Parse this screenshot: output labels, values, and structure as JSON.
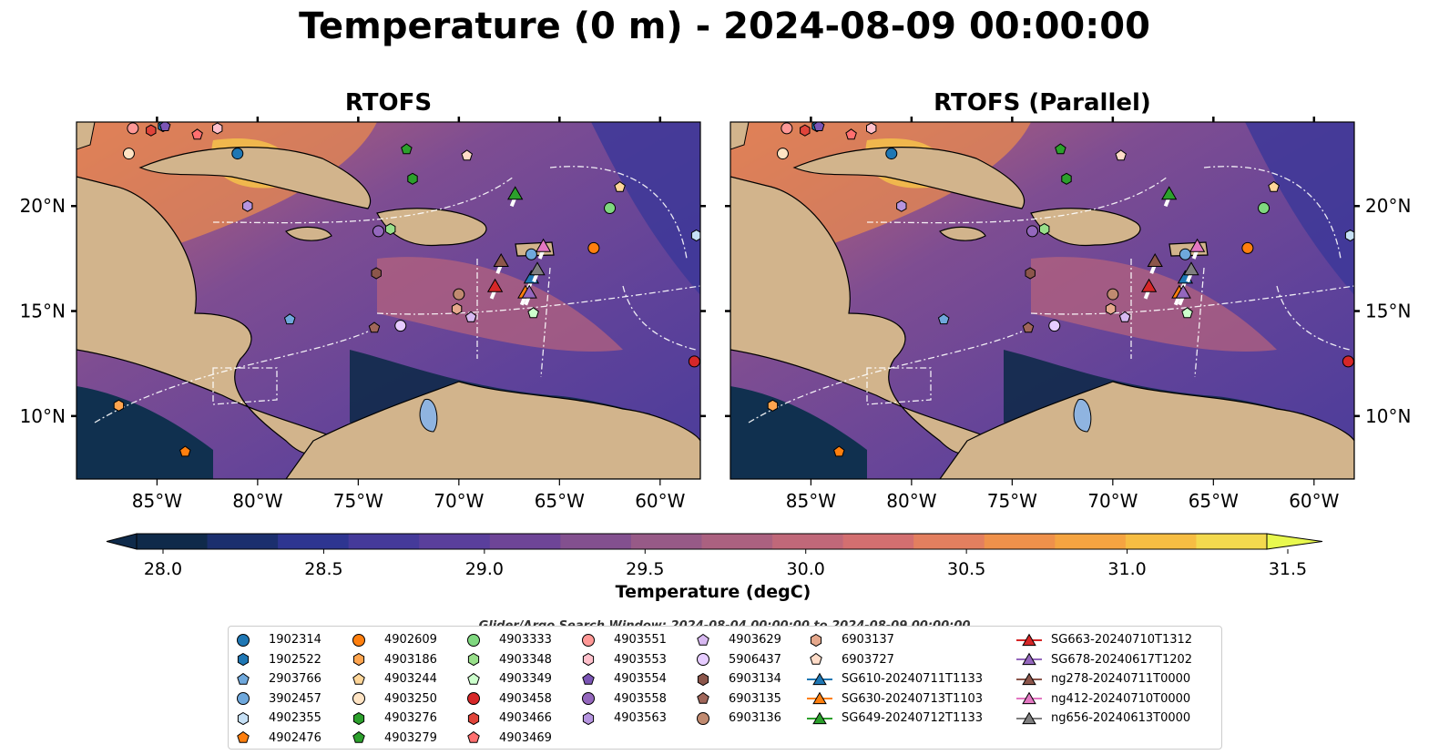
{
  "figure": {
    "title": "Temperature (0 m) - 2024-08-09 00:00:00",
    "panels": [
      {
        "title": "RTOFS"
      },
      {
        "title": "RTOFS (Parallel)"
      }
    ],
    "search_window": "Glider/Argo Search Window: 2024-08-04 00:00:00 to 2024-08-09 00:00:00",
    "colorbar_label": "Temperature (degC)"
  },
  "chart_data": {
    "type": "heatmap",
    "title": "Temperature (0 m) - 2024-08-09 00:00:00",
    "subplots": [
      "RTOFS",
      "RTOFS (Parallel)"
    ],
    "x_ticks": [
      "85°W",
      "80°W",
      "75°W",
      "70°W",
      "65°W",
      "60°W"
    ],
    "x_tick_values": [
      -85,
      -80,
      -75,
      -70,
      -65,
      -60
    ],
    "y_ticks": [
      "20°N",
      "15°N",
      "10°N"
    ],
    "y_tick_values": [
      20,
      15,
      10
    ],
    "xlim": [
      -89,
      -58
    ],
    "ylim": [
      7,
      24
    ],
    "colorbar": {
      "label": "Temperature (degC)",
      "ticks": [
        "28.0",
        "28.5",
        "29.0",
        "29.5",
        "30.0",
        "30.5",
        "31.0",
        "31.5"
      ],
      "tick_values": [
        28.0,
        28.5,
        29.0,
        29.5,
        30.0,
        30.5,
        31.0,
        31.5
      ],
      "range": [
        28.0,
        31.5
      ],
      "extend": "both",
      "colors": [
        "#0f2a4a",
        "#1b2f6e",
        "#2e3591",
        "#453a9a",
        "#5a3f9c",
        "#6e4597",
        "#83508f",
        "#975a87",
        "#ab6180",
        "#c06879",
        "#d36f70",
        "#e37f5f",
        "#ef914b",
        "#f5a441",
        "#f6bd43",
        "#f3d94e"
      ],
      "under_color": "#0f2a4a",
      "over_color": "#e8f84e"
    },
    "land_color": "#d2b48c",
    "glider_observations": [
      {
        "name": "SG610-20240711T1133",
        "lon": -66.4,
        "lat": 16.6,
        "color": "#1f77b4"
      },
      {
        "name": "SG630-20240713T1103",
        "lon": -66.7,
        "lat": 15.9,
        "color": "#ff7f0e"
      },
      {
        "name": "SG649-20240712T1133",
        "lon": -67.2,
        "lat": 20.6,
        "color": "#2ca02c"
      },
      {
        "name": "SG663-20240710T1312",
        "lon": -68.2,
        "lat": 16.2,
        "color": "#d62728"
      },
      {
        "name": "SG678-20240617T1202",
        "lon": -66.5,
        "lat": 15.9,
        "color": "#9467bd"
      },
      {
        "name": "ng278-20240711T0000",
        "lon": -67.9,
        "lat": 17.4,
        "color": "#8c564b"
      },
      {
        "name": "ng412-20240710T0000",
        "lon": -65.8,
        "lat": 18.1,
        "color": "#e377c2"
      },
      {
        "name": "ng656-20240613T0000",
        "lon": -66.1,
        "lat": 17.0,
        "color": "#7f7f7f"
      }
    ],
    "argo_floats": [
      {
        "name": "1902314",
        "lon": -81.0,
        "lat": 22.5,
        "color": "#1f77b4",
        "marker": "circle"
      },
      {
        "name": "1902522",
        "lon": -84.7,
        "lat": 23.8,
        "color": "#1f77b4",
        "marker": "hexagon"
      },
      {
        "name": "2903766",
        "lon": -78.4,
        "lat": 14.6,
        "color": "#6fa8dc",
        "marker": "pentagon"
      },
      {
        "name": "3902457",
        "lon": -66.4,
        "lat": 17.7,
        "color": "#6fa8dc",
        "marker": "circle"
      },
      {
        "name": "4902355",
        "lon": -58.2,
        "lat": 18.6,
        "color": "#c6e0f5",
        "marker": "hexagon"
      },
      {
        "name": "4902476",
        "lon": -83.6,
        "lat": 8.3,
        "color": "#ff7f0e",
        "marker": "pentagon"
      },
      {
        "name": "4902609",
        "lon": -63.3,
        "lat": 18.0,
        "color": "#ff7f0e",
        "marker": "circle"
      },
      {
        "name": "4903186",
        "lon": -86.9,
        "lat": 10.5,
        "color": "#ffa54f",
        "marker": "hexagon"
      },
      {
        "name": "4903244",
        "lon": -62.0,
        "lat": 20.9,
        "color": "#ffd699",
        "marker": "pentagon"
      },
      {
        "name": "4903250",
        "lon": -86.4,
        "lat": 22.5,
        "color": "#ffe4c4",
        "marker": "circle"
      },
      {
        "name": "4903276",
        "lon": -72.3,
        "lat": 21.3,
        "color": "#2ca02c",
        "marker": "hexagon"
      },
      {
        "name": "4903279",
        "lon": -72.6,
        "lat": 22.7,
        "color": "#2ca02c",
        "marker": "pentagon"
      },
      {
        "name": "4903333",
        "lon": -62.5,
        "lat": 19.9,
        "color": "#7fd87f",
        "marker": "circle"
      },
      {
        "name": "4903348",
        "lon": -73.4,
        "lat": 18.9,
        "color": "#98df8a",
        "marker": "hexagon"
      },
      {
        "name": "4903349",
        "lon": -66.3,
        "lat": 14.9,
        "color": "#ccffcc",
        "marker": "pentagon"
      },
      {
        "name": "4903458",
        "lon": -58.3,
        "lat": 12.6,
        "color": "#d62728",
        "marker": "circle"
      },
      {
        "name": "4903466",
        "lon": -85.3,
        "lat": 23.6,
        "color": "#e0443a",
        "marker": "hexagon"
      },
      {
        "name": "4903469",
        "lon": -83.0,
        "lat": 23.4,
        "color": "#ff6f6f",
        "marker": "pentagon"
      },
      {
        "name": "4903551",
        "lon": -86.2,
        "lat": 23.7,
        "color": "#ff9896",
        "marker": "circle"
      },
      {
        "name": "4903553",
        "lon": -82.0,
        "lat": 23.7,
        "color": "#ffc0cb",
        "marker": "hexagon"
      },
      {
        "name": "4903554",
        "lon": -84.6,
        "lat": 23.8,
        "color": "#7b55b5",
        "marker": "pentagon"
      },
      {
        "name": "4903558",
        "lon": -74.0,
        "lat": 18.8,
        "color": "#9467bd",
        "marker": "circle"
      },
      {
        "name": "4903563",
        "lon": -80.5,
        "lat": 20.0,
        "color": "#b695e0",
        "marker": "hexagon"
      },
      {
        "name": "4903629",
        "lon": -69.4,
        "lat": 14.7,
        "color": "#d7b8f0",
        "marker": "pentagon"
      },
      {
        "name": "5906437",
        "lon": -72.9,
        "lat": 14.3,
        "color": "#e6ccff",
        "marker": "circle"
      },
      {
        "name": "6903134",
        "lon": -74.1,
        "lat": 16.8,
        "color": "#8c564b",
        "marker": "hexagon"
      },
      {
        "name": "6903135",
        "lon": -74.2,
        "lat": 14.2,
        "color": "#a0665a",
        "marker": "pentagon"
      },
      {
        "name": "6903136",
        "lon": -70.0,
        "lat": 15.8,
        "color": "#c08a70",
        "marker": "circle"
      },
      {
        "name": "6903137",
        "lon": -70.1,
        "lat": 15.1,
        "color": "#e6a88c",
        "marker": "hexagon"
      },
      {
        "name": "6903727",
        "lon": -69.6,
        "lat": 22.4,
        "color": "#ffdcc8",
        "marker": "pentagon"
      }
    ]
  },
  "legend": {
    "columns": [
      [
        {
          "label": "1902314",
          "marker": "circle",
          "color": "#1f77b4"
        },
        {
          "label": "1902522",
          "marker": "hexagon",
          "color": "#1f77b4"
        },
        {
          "label": "2903766",
          "marker": "pentagon",
          "color": "#6fa8dc"
        },
        {
          "label": "3902457",
          "marker": "circle",
          "color": "#6fa8dc"
        },
        {
          "label": "4902355",
          "marker": "hexagon",
          "color": "#c6e0f5"
        },
        {
          "label": "4902476",
          "marker": "pentagon",
          "color": "#ff7f0e"
        }
      ],
      [
        {
          "label": "4902609",
          "marker": "circle",
          "color": "#ff7f0e"
        },
        {
          "label": "4903186",
          "marker": "hexagon",
          "color": "#ffa54f"
        },
        {
          "label": "4903244",
          "marker": "pentagon",
          "color": "#ffd699"
        },
        {
          "label": "4903250",
          "marker": "circle",
          "color": "#ffe4c4"
        },
        {
          "label": "4903276",
          "marker": "hexagon",
          "color": "#2ca02c"
        },
        {
          "label": "4903279",
          "marker": "pentagon",
          "color": "#2ca02c"
        }
      ],
      [
        {
          "label": "4903333",
          "marker": "circle",
          "color": "#7fd87f"
        },
        {
          "label": "4903348",
          "marker": "hexagon",
          "color": "#98df8a"
        },
        {
          "label": "4903349",
          "marker": "pentagon",
          "color": "#ccffcc"
        },
        {
          "label": "4903458",
          "marker": "circle",
          "color": "#d62728"
        },
        {
          "label": "4903466",
          "marker": "hexagon",
          "color": "#e0443a"
        },
        {
          "label": "4903469",
          "marker": "pentagon",
          "color": "#ff6f6f"
        }
      ],
      [
        {
          "label": "4903551",
          "marker": "circle",
          "color": "#ff9896"
        },
        {
          "label": "4903553",
          "marker": "hexagon",
          "color": "#ffc0cb"
        },
        {
          "label": "4903554",
          "marker": "pentagon",
          "color": "#7b55b5"
        },
        {
          "label": "4903558",
          "marker": "circle",
          "color": "#9467bd"
        },
        {
          "label": "4903563",
          "marker": "hexagon",
          "color": "#b695e0"
        }
      ],
      [
        {
          "label": "4903629",
          "marker": "pentagon",
          "color": "#d7b8f0"
        },
        {
          "label": "5906437",
          "marker": "circle",
          "color": "#e6ccff"
        },
        {
          "label": "6903134",
          "marker": "hexagon",
          "color": "#8c564b"
        },
        {
          "label": "6903135",
          "marker": "pentagon",
          "color": "#a0665a"
        },
        {
          "label": "6903136",
          "marker": "circle",
          "color": "#c08a70"
        }
      ],
      [
        {
          "label": "6903137",
          "marker": "hexagon",
          "color": "#e6a88c"
        },
        {
          "label": "6903727",
          "marker": "pentagon",
          "color": "#ffdcc8"
        },
        {
          "label": "SG610-20240711T1133",
          "marker": "triangle-line",
          "color": "#1f77b4"
        },
        {
          "label": "SG630-20240713T1103",
          "marker": "triangle-line",
          "color": "#ff7f0e"
        },
        {
          "label": "SG649-20240712T1133",
          "marker": "triangle-line",
          "color": "#2ca02c"
        }
      ],
      [
        {
          "label": "SG663-20240710T1312",
          "marker": "triangle-line",
          "color": "#d62728"
        },
        {
          "label": "SG678-20240617T1202",
          "marker": "triangle-line",
          "color": "#9467bd"
        },
        {
          "label": "ng278-20240711T0000",
          "marker": "triangle-line",
          "color": "#8c564b"
        },
        {
          "label": "ng412-20240710T0000",
          "marker": "triangle-line",
          "color": "#e377c2"
        },
        {
          "label": "ng656-20240613T0000",
          "marker": "triangle-line",
          "color": "#7f7f7f"
        }
      ]
    ]
  }
}
